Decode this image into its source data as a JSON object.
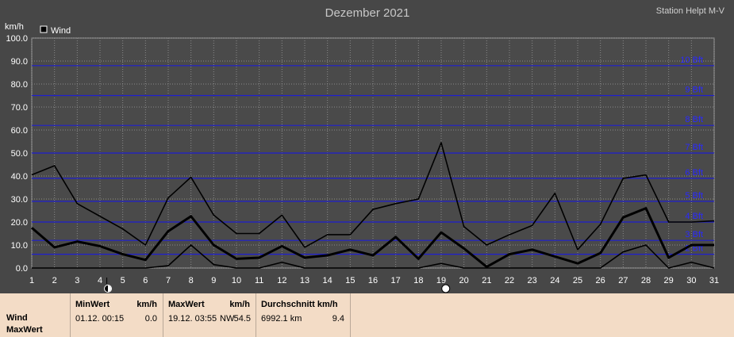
{
  "chart_data": {
    "type": "line",
    "title": "Dezember 2021",
    "station": "Station Helpt M-V",
    "ylabel": "km/h",
    "ylim": [
      0,
      100
    ],
    "yticks": [
      "0.0",
      "10.0",
      "20.0",
      "30.0",
      "40.0",
      "50.0",
      "60.0",
      "70.0",
      "80.0",
      "90.0",
      "100.0"
    ],
    "x": [
      1,
      2,
      3,
      4,
      5,
      6,
      7,
      8,
      9,
      10,
      11,
      12,
      13,
      14,
      15,
      16,
      17,
      18,
      19,
      20,
      21,
      22,
      23,
      24,
      25,
      26,
      27,
      28,
      29,
      30,
      31
    ],
    "legend": "Wind",
    "beaufort_lines": [
      {
        "label": "2 Bft",
        "value": 6
      },
      {
        "label": "3 Bft",
        "value": 12
      },
      {
        "label": "4 Bft",
        "value": 20
      },
      {
        "label": "5 Bft",
        "value": 29
      },
      {
        "label": "6 Bft",
        "value": 39
      },
      {
        "label": "7 Bft",
        "value": 50
      },
      {
        "label": "8 Bft",
        "value": 62
      },
      {
        "label": "9 Bft",
        "value": 75
      },
      {
        "label": "10 Bft",
        "value": 88
      }
    ],
    "series": [
      {
        "name": "Max",
        "values": [
          40.5,
          44.5,
          28,
          22.5,
          17,
          10,
          30.5,
          39.5,
          23,
          15,
          15,
          23,
          9,
          14.5,
          14.5,
          25.5,
          28,
          30,
          54.5,
          18,
          10,
          14.5,
          18.5,
          32.5,
          8,
          19,
          39,
          40.5,
          20,
          20,
          20.5
        ]
      },
      {
        "name": "Wind",
        "values": [
          17.5,
          9,
          11.5,
          9.5,
          6,
          3.5,
          16,
          22.5,
          10,
          4,
          4.5,
          9.5,
          4.5,
          5.5,
          8,
          5.5,
          13.5,
          4,
          15.5,
          8.5,
          0.5,
          6,
          8,
          5,
          2,
          6.5,
          22,
          26,
          4.5,
          10,
          10
        ]
      },
      {
        "name": "Min",
        "values": [
          0,
          0,
          0,
          0,
          0,
          0,
          1,
          10,
          1.5,
          0,
          0,
          2.5,
          0,
          0,
          0,
          0,
          0,
          0,
          2,
          0,
          0,
          0,
          0,
          0,
          0,
          0,
          7,
          10,
          0,
          2.5,
          0
        ]
      }
    ]
  },
  "stats": {
    "row1_label": "Wind",
    "row2_label": "MaxWert",
    "min_header": "MinWert",
    "min_unit": "km/h",
    "min_datetime": "01.12.  00:15",
    "min_value": "0.0",
    "max_header": "MaxWert",
    "max_unit": "km/h",
    "max_datetime": "19.12.  03:55",
    "max_dir": "NW",
    "max_value": "54.5",
    "avg_header": "Durchschnitt km/h",
    "avg_distance": "6992.1 km",
    "avg_value": "9.4"
  }
}
